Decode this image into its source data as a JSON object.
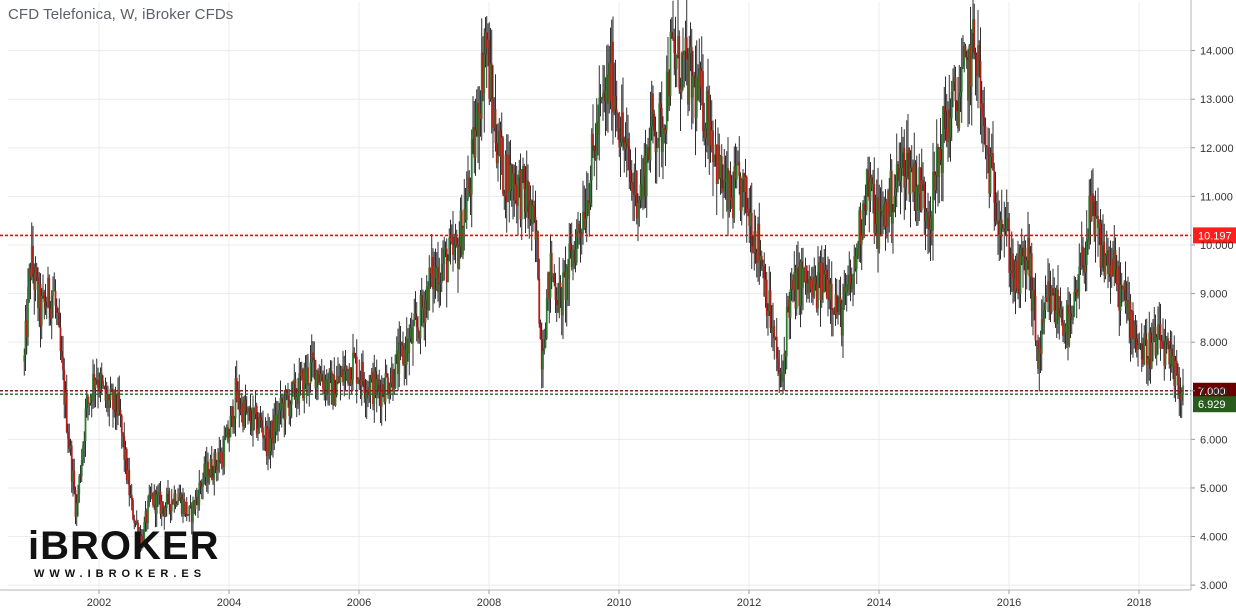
{
  "chart_title": "CFD Telefonica, W, iBroker CFDs",
  "logo": {
    "text": "iBROKER",
    "url": "WWW.IBROKER.ES"
  },
  "chart_data": {
    "type": "candlestick",
    "title": "CFD Telefonica, W, iBroker CFDs",
    "xlim": [
      2000.6,
      2018.8
    ],
    "ylim": [
      2.9,
      15.0
    ],
    "x_ticks": [
      "2002",
      "2004",
      "2006",
      "2008",
      "2010",
      "2012",
      "2014",
      "2016",
      "2018"
    ],
    "y_ticks": [
      "3.000",
      "4.000",
      "5.000",
      "6.000",
      "7.000",
      "8.000",
      "9.000",
      "10.000",
      "11.000",
      "12.000",
      "13.000",
      "14.000"
    ],
    "grid": true,
    "price_path": [
      [
        2000.85,
        7.6
      ],
      [
        2000.95,
        9.7
      ],
      [
        2001.1,
        8.6
      ],
      [
        2001.3,
        9.1
      ],
      [
        2001.5,
        6.5
      ],
      [
        2001.65,
        4.5
      ],
      [
        2001.8,
        6.6
      ],
      [
        2001.95,
        7.4
      ],
      [
        2002.1,
        6.8
      ],
      [
        2002.3,
        6.6
      ],
      [
        2002.5,
        4.6
      ],
      [
        2002.65,
        3.9
      ],
      [
        2002.8,
        4.8
      ],
      [
        2003.0,
        4.6
      ],
      [
        2003.2,
        4.9
      ],
      [
        2003.4,
        4.4
      ],
      [
        2003.6,
        5.2
      ],
      [
        2003.9,
        5.7
      ],
      [
        2004.0,
        6.1
      ],
      [
        2004.1,
        6.9
      ],
      [
        2004.3,
        6.4
      ],
      [
        2004.5,
        6.3
      ],
      [
        2004.6,
        5.9
      ],
      [
        2004.8,
        6.6
      ],
      [
        2005.0,
        6.9
      ],
      [
        2005.3,
        7.5
      ],
      [
        2005.6,
        7.0
      ],
      [
        2005.9,
        7.6
      ],
      [
        2006.1,
        7.2
      ],
      [
        2006.3,
        7.0
      ],
      [
        2006.5,
        7.3
      ],
      [
        2006.7,
        7.8
      ],
      [
        2006.9,
        8.3
      ],
      [
        2007.1,
        9.3
      ],
      [
        2007.3,
        9.6
      ],
      [
        2007.5,
        9.8
      ],
      [
        2007.7,
        11.2
      ],
      [
        2007.85,
        13.0
      ],
      [
        2007.95,
        14.3
      ],
      [
        2008.05,
        12.8
      ],
      [
        2008.2,
        11.6
      ],
      [
        2008.4,
        11.3
      ],
      [
        2008.6,
        10.9
      ],
      [
        2008.75,
        9.8
      ],
      [
        2008.8,
        7.7
      ],
      [
        2008.95,
        9.5
      ],
      [
        2009.1,
        8.8
      ],
      [
        2009.3,
        9.9
      ],
      [
        2009.5,
        11.0
      ],
      [
        2009.7,
        12.6
      ],
      [
        2009.9,
        13.5
      ],
      [
        2010.0,
        12.6
      ],
      [
        2010.2,
        11.2
      ],
      [
        2010.35,
        11.1
      ],
      [
        2010.5,
        12.5
      ],
      [
        2010.65,
        12.3
      ],
      [
        2010.8,
        13.9
      ],
      [
        2011.0,
        13.6
      ],
      [
        2011.2,
        13.1
      ],
      [
        2011.4,
        12.6
      ],
      [
        2011.55,
        11.4
      ],
      [
        2011.7,
        10.9
      ],
      [
        2011.85,
        11.2
      ],
      [
        2012.0,
        10.7
      ],
      [
        2012.2,
        9.7
      ],
      [
        2012.35,
        8.3
      ],
      [
        2012.5,
        7.0
      ],
      [
        2012.6,
        8.8
      ],
      [
        2012.8,
        9.3
      ],
      [
        2013.0,
        9.0
      ],
      [
        2013.2,
        9.4
      ],
      [
        2013.4,
        8.5
      ],
      [
        2013.6,
        9.3
      ],
      [
        2013.8,
        11.3
      ],
      [
        2014.0,
        10.4
      ],
      [
        2014.2,
        11.0
      ],
      [
        2014.4,
        11.8
      ],
      [
        2014.6,
        11.2
      ],
      [
        2014.8,
        10.7
      ],
      [
        2015.0,
        12.4
      ],
      [
        2015.2,
        13.0
      ],
      [
        2015.35,
        13.5
      ],
      [
        2015.5,
        14.2
      ],
      [
        2015.6,
        12.3
      ],
      [
        2015.75,
        11.2
      ],
      [
        2015.9,
        10.6
      ],
      [
        2016.1,
        9.2
      ],
      [
        2016.3,
        9.8
      ],
      [
        2016.45,
        7.6
      ],
      [
        2016.6,
        8.9
      ],
      [
        2016.8,
        8.6
      ],
      [
        2016.95,
        8.2
      ],
      [
        2017.1,
        9.4
      ],
      [
        2017.25,
        10.6
      ],
      [
        2017.45,
        9.8
      ],
      [
        2017.6,
        9.5
      ],
      [
        2017.75,
        8.9
      ],
      [
        2017.9,
        8.4
      ],
      [
        2018.05,
        7.8
      ],
      [
        2018.2,
        7.9
      ],
      [
        2018.35,
        8.0
      ],
      [
        2018.5,
        7.4
      ],
      [
        2018.62,
        7.1
      ],
      [
        2018.68,
        7.0
      ]
    ],
    "horizontal_lines": [
      {
        "value": 10.197,
        "label": "10.197",
        "color": "#ff0000",
        "label_bg": "#ff1e1e"
      },
      {
        "value": 7.0,
        "label": "7.000",
        "color": "#7f1c1c",
        "label_bg": "#6b0000"
      },
      {
        "value": 6.929,
        "label": "6.929",
        "color": "#1f6b1f",
        "label_bg": "#285c1d"
      }
    ]
  }
}
